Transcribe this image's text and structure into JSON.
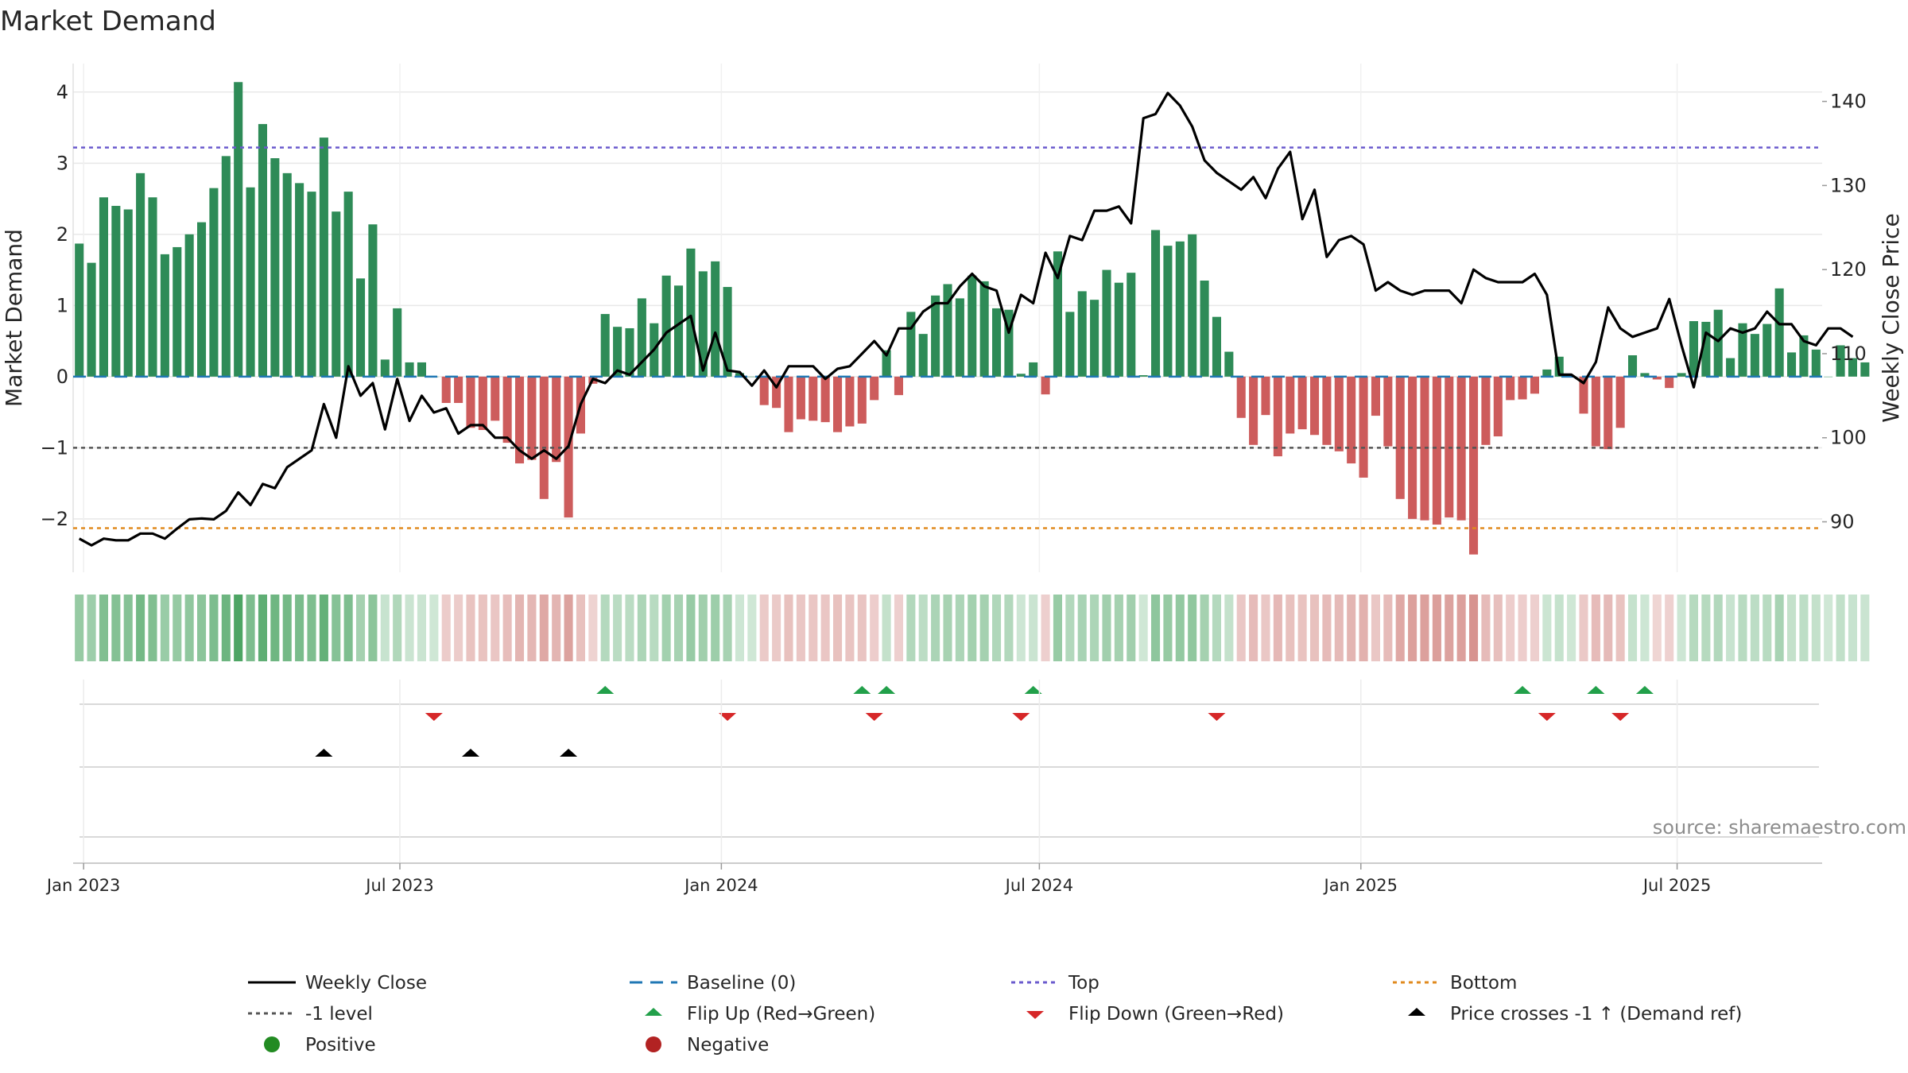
{
  "chart_data": {
    "type": "bar",
    "title": "Market Demand",
    "ylabel_left": "Market Demand",
    "ylabel_right": "Weekly Close Price",
    "source": "source: sharemaestro.com",
    "ylim_left": [
      -2.75,
      4.4
    ],
    "ylim_right": [
      84.0,
      144.5
    ],
    "left_ticks": [
      4,
      3,
      2,
      1,
      0,
      -1,
      -2
    ],
    "left_tick_labels": [
      "4",
      "3",
      "2",
      "1",
      "0",
      "−1",
      "−2"
    ],
    "right_ticks": [
      140,
      130,
      120,
      110,
      100,
      90
    ],
    "right_tick_labels": [
      "140",
      "130",
      "120",
      "110",
      "100",
      "90"
    ],
    "x_start": "2022-12-26",
    "x_end": "2025-09-22",
    "x_ticks": [
      {
        "date": "2023-01-01",
        "label": "Jan 2023"
      },
      {
        "date": "2023-07-01",
        "label": "Jul 2023"
      },
      {
        "date": "2024-01-01",
        "label": "Jan 2024"
      },
      {
        "date": "2024-07-01",
        "label": "Jul 2024"
      },
      {
        "date": "2025-01-01",
        "label": "Jan 2025"
      },
      {
        "date": "2025-07-01",
        "label": "Jul 2025"
      }
    ],
    "first_week": "2022-12-26",
    "levels": {
      "top": 3.22,
      "minus_one": -1.0,
      "bottom": -2.13
    },
    "demand": [
      1.87,
      1.6,
      2.52,
      2.4,
      2.35,
      2.86,
      2.52,
      1.72,
      1.82,
      2.0,
      2.17,
      2.65,
      3.1,
      4.14,
      2.66,
      3.55,
      3.07,
      2.86,
      2.72,
      2.6,
      3.36,
      2.32,
      2.6,
      1.38,
      2.14,
      0.24,
      0.96,
      0.2,
      0.2,
      0.0,
      -0.37,
      -0.37,
      -0.72,
      -0.75,
      -0.62,
      -0.93,
      -1.22,
      -1.17,
      -1.72,
      -1.2,
      -1.98,
      -0.8,
      -0.1,
      0.88,
      0.7,
      0.68,
      1.1,
      0.75,
      1.42,
      1.28,
      1.8,
      1.48,
      1.62,
      1.26,
      0.05,
      0.0,
      -0.4,
      -0.44,
      -0.78,
      -0.6,
      -0.62,
      -0.64,
      -0.78,
      -0.7,
      -0.66,
      -0.33,
      0.37,
      -0.26,
      0.91,
      0.6,
      1.14,
      1.3,
      1.1,
      1.42,
      1.34,
      0.96,
      0.94,
      0.04,
      0.2,
      -0.25,
      1.76,
      0.91,
      1.2,
      1.08,
      1.5,
      1.32,
      1.46,
      0.02,
      2.06,
      1.84,
      1.9,
      2.0,
      1.35,
      0.84,
      0.35,
      -0.58,
      -0.96,
      -0.54,
      -1.12,
      -0.8,
      -0.74,
      -0.82,
      -0.96,
      -1.05,
      -1.22,
      -1.42,
      -0.55,
      -0.98,
      -1.72,
      -2.0,
      -2.02,
      -2.08,
      -1.98,
      -2.02,
      -2.5,
      -0.96,
      -0.84,
      -0.33,
      -0.32,
      -0.24,
      0.1,
      0.28,
      0.0,
      -0.52,
      -0.98,
      -1.02,
      -0.72,
      0.3,
      0.05,
      -0.04,
      -0.16,
      0.05,
      0.78,
      0.77,
      0.94,
      0.26,
      0.75,
      0.6,
      0.74,
      1.24,
      0.34,
      0.58,
      0.38,
      0.0,
      0.44,
      0.26,
      0.2
    ],
    "price": [
      88.0,
      87.2,
      88.0,
      87.8,
      87.8,
      88.6,
      88.6,
      88.0,
      89.2,
      90.3,
      90.4,
      90.3,
      91.3,
      93.5,
      92.0,
      94.5,
      94.0,
      96.5,
      97.5,
      98.5,
      104.0,
      100.0,
      108.5,
      105.0,
      106.5,
      101.0,
      107.0,
      102.0,
      105.0,
      103.0,
      103.5,
      100.5,
      101.5,
      101.5,
      100.0,
      100.0,
      98.5,
      97.5,
      98.5,
      97.5,
      99.0,
      104.0,
      107.0,
      106.5,
      108.0,
      107.5,
      109.0,
      110.5,
      112.5,
      113.5,
      114.5,
      108.0,
      112.5,
      108.0,
      107.8,
      106.2,
      108.0,
      106.0,
      108.5,
      108.5,
      108.5,
      107.0,
      108.2,
      108.5,
      110.0,
      111.5,
      109.8,
      113.0,
      113.0,
      115.0,
      116.0,
      116.0,
      118.0,
      119.5,
      118.0,
      117.5,
      112.5,
      117.0,
      116.0,
      122.0,
      119.0,
      124.0,
      123.5,
      127.0,
      127.0,
      127.5,
      125.5,
      138.0,
      138.5,
      141.0,
      139.5,
      137.0,
      133.0,
      131.5,
      130.5,
      129.5,
      131.0,
      128.5,
      132.0,
      134.0,
      126.0,
      129.5,
      121.5,
      123.5,
      124.0,
      123.0,
      117.5,
      118.5,
      117.5,
      117.0,
      117.5,
      117.5,
      117.5,
      116.0,
      120.0,
      119.0,
      118.5,
      118.5,
      118.5,
      119.5,
      117.0,
      107.5,
      107.5,
      106.5,
      109.0,
      115.5,
      113.0,
      112.0,
      112.5,
      113.0,
      116.5,
      111.0,
      106.0,
      112.5,
      111.5,
      113.0,
      112.5,
      113.0,
      115.0,
      113.5,
      113.5,
      111.5,
      111.0,
      113.0,
      113.0,
      112.0
    ],
    "flip_up_weeks": [
      43,
      64,
      66,
      78,
      118,
      124,
      128
    ],
    "flip_down_weeks": [
      29,
      53,
      65,
      77,
      93,
      120,
      126
    ],
    "price_cross_weeks": [
      20,
      32,
      40
    ],
    "colors": {
      "positive_bar": "#2e8b57",
      "negative_bar": "#cd5c5c",
      "price_line": "#000000",
      "baseline": "#1f77b4",
      "top": "#6a5acd",
      "minus_one": "#555555",
      "bottom": "#e08a1e",
      "flip_up": "#22a04a",
      "flip_down": "#d62728",
      "cross": "#000000",
      "strip_positive": "#3f9e58",
      "strip_negative": "#c25b55",
      "grid": "#e8e8e8"
    },
    "legend": [
      {
        "key": "weekly_close",
        "label": "Weekly Close"
      },
      {
        "key": "baseline",
        "label": "Baseline (0)"
      },
      {
        "key": "top",
        "label": "Top"
      },
      {
        "key": "bottom",
        "label": "Bottom"
      },
      {
        "key": "minus_one",
        "label": "-1 level"
      },
      {
        "key": "flip_up",
        "label": "Flip Up (Red→Green)"
      },
      {
        "key": "flip_down",
        "label": "Flip Down (Green→Red)"
      },
      {
        "key": "cross",
        "label": "Price crosses -1 ↑ (Demand ref)"
      },
      {
        "key": "positive",
        "label": "Positive"
      },
      {
        "key": "negative",
        "label": "Negative"
      }
    ]
  }
}
